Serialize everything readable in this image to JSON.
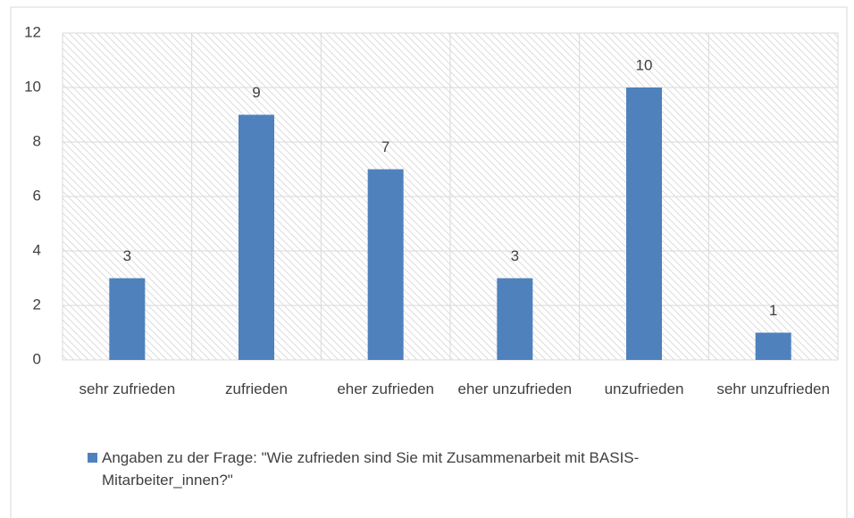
{
  "chart_data": {
    "type": "bar",
    "categories": [
      "sehr zufrieden",
      "zufrieden",
      "eher zufrieden",
      "eher unzufrieden",
      "unzufrieden",
      "sehr unzufrieden"
    ],
    "series": [
      {
        "name": "Angaben zu der Frage: \"Wie zufrieden sind Sie mit Zusammenarbeit mit BASIS-Mitarbeiter_innen?\"",
        "color": "#4f81bd",
        "values": [
          3,
          9,
          7,
          3,
          10,
          1
        ]
      }
    ],
    "ylim": [
      0,
      12
    ],
    "yticks": [
      0,
      2,
      4,
      6,
      8,
      10,
      12
    ],
    "grid": true,
    "legend": "bottom"
  }
}
